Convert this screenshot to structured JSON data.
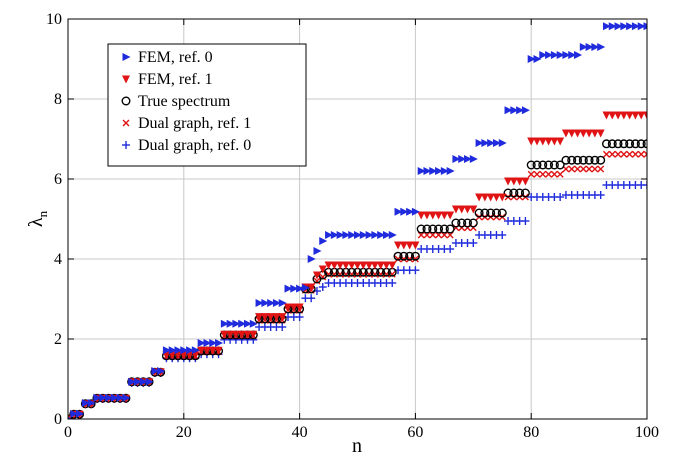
{
  "chart_data": {
    "type": "scatter",
    "title": "",
    "xlabel": "n",
    "ylabel": "λ",
    "ylabel_subscript": "n",
    "xlim": [
      0,
      100
    ],
    "ylim": [
      0,
      10
    ],
    "x_ticks": [
      0,
      20,
      40,
      60,
      80,
      100
    ],
    "y_ticks": [
      0,
      2,
      4,
      6,
      8,
      10
    ],
    "grid": true,
    "legend_position": "top-left",
    "series": [
      {
        "name": "FEM, ref. 0",
        "marker": "triangle-right",
        "color": "#1f2bdc",
        "steps": [
          [
            0,
            0,
            0
          ],
          [
            1,
            2,
            0.13
          ],
          [
            3,
            4,
            0.4
          ],
          [
            5,
            10,
            0.53
          ],
          [
            11,
            14,
            0.93
          ],
          [
            15,
            16,
            1.2
          ],
          [
            17,
            22,
            1.72
          ],
          [
            23,
            26,
            1.9
          ],
          [
            27,
            32,
            2.38
          ],
          [
            33,
            37,
            2.9
          ],
          [
            38,
            40,
            3.26
          ],
          [
            41,
            41,
            3.28
          ],
          [
            42,
            42,
            4.0
          ],
          [
            43,
            43,
            4.2
          ],
          [
            44,
            44,
            4.45
          ],
          [
            45,
            56,
            4.6
          ],
          [
            57,
            60,
            5.18
          ],
          [
            61,
            66,
            6.2
          ],
          [
            67,
            70,
            6.5
          ],
          [
            71,
            75,
            6.9
          ],
          [
            76,
            79,
            7.72
          ],
          [
            80,
            81,
            9.0
          ],
          [
            82,
            88,
            9.1
          ],
          [
            89,
            92,
            9.3
          ],
          [
            93,
            100,
            9.82
          ]
        ]
      },
      {
        "name": "FEM, ref. 1",
        "marker": "triangle-down",
        "color": "#e01414",
        "steps": [
          [
            0,
            0,
            0
          ],
          [
            1,
            2,
            0.12
          ],
          [
            3,
            4,
            0.38
          ],
          [
            5,
            10,
            0.52
          ],
          [
            11,
            14,
            0.93
          ],
          [
            15,
            16,
            1.18
          ],
          [
            17,
            22,
            1.6
          ],
          [
            23,
            26,
            1.72
          ],
          [
            27,
            32,
            2.12
          ],
          [
            33,
            37,
            2.56
          ],
          [
            38,
            40,
            2.8
          ],
          [
            41,
            42,
            3.3
          ],
          [
            43,
            43,
            3.6
          ],
          [
            44,
            44,
            3.75
          ],
          [
            45,
            56,
            3.85
          ],
          [
            57,
            60,
            4.35
          ],
          [
            61,
            66,
            5.1
          ],
          [
            67,
            70,
            5.25
          ],
          [
            71,
            75,
            5.55
          ],
          [
            76,
            79,
            5.95
          ],
          [
            80,
            85,
            6.95
          ],
          [
            86,
            92,
            7.15
          ],
          [
            93,
            100,
            7.6
          ]
        ]
      },
      {
        "name": "True spectrum",
        "marker": "circle",
        "color": "#000000",
        "steps": [
          [
            0,
            0,
            0
          ],
          [
            1,
            2,
            0.12
          ],
          [
            3,
            4,
            0.38
          ],
          [
            5,
            10,
            0.52
          ],
          [
            11,
            14,
            0.93
          ],
          [
            15,
            16,
            1.17
          ],
          [
            17,
            22,
            1.58
          ],
          [
            23,
            26,
            1.7
          ],
          [
            27,
            32,
            2.1
          ],
          [
            33,
            37,
            2.5
          ],
          [
            38,
            40,
            2.75
          ],
          [
            41,
            42,
            3.25
          ],
          [
            43,
            43,
            3.5
          ],
          [
            44,
            44,
            3.6
          ],
          [
            45,
            56,
            3.67
          ],
          [
            57,
            60,
            4.07
          ],
          [
            61,
            66,
            4.75
          ],
          [
            67,
            70,
            4.9
          ],
          [
            71,
            75,
            5.15
          ],
          [
            76,
            79,
            5.65
          ],
          [
            80,
            85,
            6.35
          ],
          [
            86,
            92,
            6.47
          ],
          [
            93,
            100,
            6.88
          ]
        ]
      },
      {
        "name": "Dual graph, ref. 1",
        "marker": "x",
        "color": "#e01414",
        "steps": [
          [
            0,
            0,
            0
          ],
          [
            1,
            2,
            0.12
          ],
          [
            3,
            4,
            0.38
          ],
          [
            5,
            10,
            0.52
          ],
          [
            11,
            14,
            0.93
          ],
          [
            15,
            16,
            1.17
          ],
          [
            17,
            22,
            1.57
          ],
          [
            23,
            26,
            1.68
          ],
          [
            27,
            32,
            2.08
          ],
          [
            33,
            37,
            2.47
          ],
          [
            38,
            40,
            2.72
          ],
          [
            41,
            42,
            3.22
          ],
          [
            43,
            43,
            3.45
          ],
          [
            44,
            44,
            3.55
          ],
          [
            45,
            56,
            3.62
          ],
          [
            57,
            60,
            4.0
          ],
          [
            61,
            66,
            4.6
          ],
          [
            67,
            70,
            4.78
          ],
          [
            71,
            75,
            5.05
          ],
          [
            76,
            79,
            5.55
          ],
          [
            80,
            85,
            6.12
          ],
          [
            86,
            92,
            6.25
          ],
          [
            93,
            100,
            6.62
          ]
        ]
      },
      {
        "name": "Dual graph, ref. 0",
        "marker": "plus",
        "color": "#1f2bdc",
        "steps": [
          [
            0,
            0,
            0
          ],
          [
            1,
            2,
            0.11
          ],
          [
            3,
            4,
            0.37
          ],
          [
            5,
            10,
            0.5
          ],
          [
            11,
            14,
            0.9
          ],
          [
            15,
            16,
            1.15
          ],
          [
            17,
            22,
            1.52
          ],
          [
            23,
            26,
            1.62
          ],
          [
            27,
            32,
            1.98
          ],
          [
            33,
            37,
            2.3
          ],
          [
            38,
            40,
            2.55
          ],
          [
            41,
            42,
            3.02
          ],
          [
            43,
            43,
            3.2
          ],
          [
            44,
            44,
            3.3
          ],
          [
            45,
            56,
            3.4
          ],
          [
            57,
            60,
            3.72
          ],
          [
            61,
            66,
            4.25
          ],
          [
            67,
            70,
            4.4
          ],
          [
            71,
            75,
            4.6
          ],
          [
            76,
            79,
            4.95
          ],
          [
            80,
            85,
            5.55
          ],
          [
            86,
            92,
            5.6
          ],
          [
            93,
            100,
            5.85
          ]
        ]
      }
    ]
  }
}
